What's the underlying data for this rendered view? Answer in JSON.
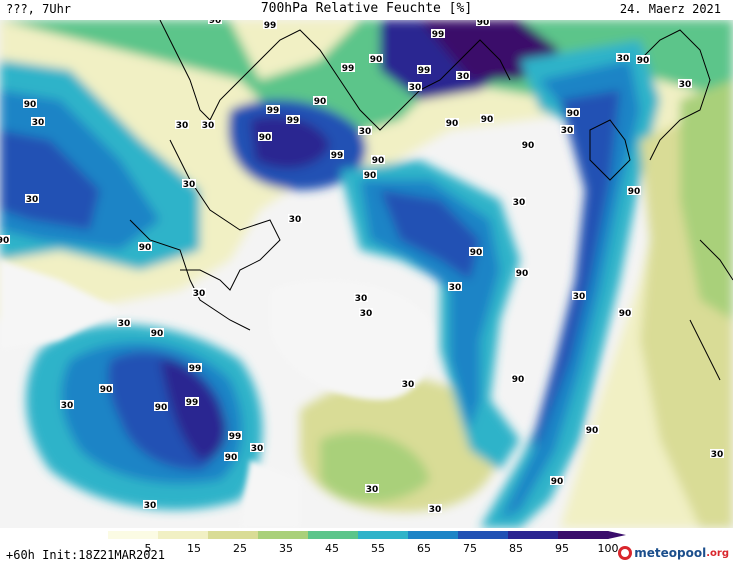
{
  "header": {
    "left": "???, 7Uhr",
    "title": "700hPa Relative Feuchte [%]",
    "date": "24. Maerz 2021"
  },
  "footer": {
    "run": "+60h Init:18Z21MAR2021",
    "logo_main": "meteopool",
    "logo_suffix": ".org"
  },
  "colorbar": {
    "labels": [
      "5",
      "15",
      "25",
      "35",
      "45",
      "55",
      "65",
      "75",
      "85",
      "95",
      "100"
    ],
    "colors": [
      "#f5f5f5",
      "#fbfbe4",
      "#f1f0c4",
      "#d9dc96",
      "#a9d07a",
      "#5cc58a",
      "#2fb3c9",
      "#1d84c6",
      "#2151b4",
      "#2a2591",
      "#3a0d6b"
    ]
  },
  "map": {
    "contour_labels": [
      "99",
      "90",
      "30"
    ]
  }
}
